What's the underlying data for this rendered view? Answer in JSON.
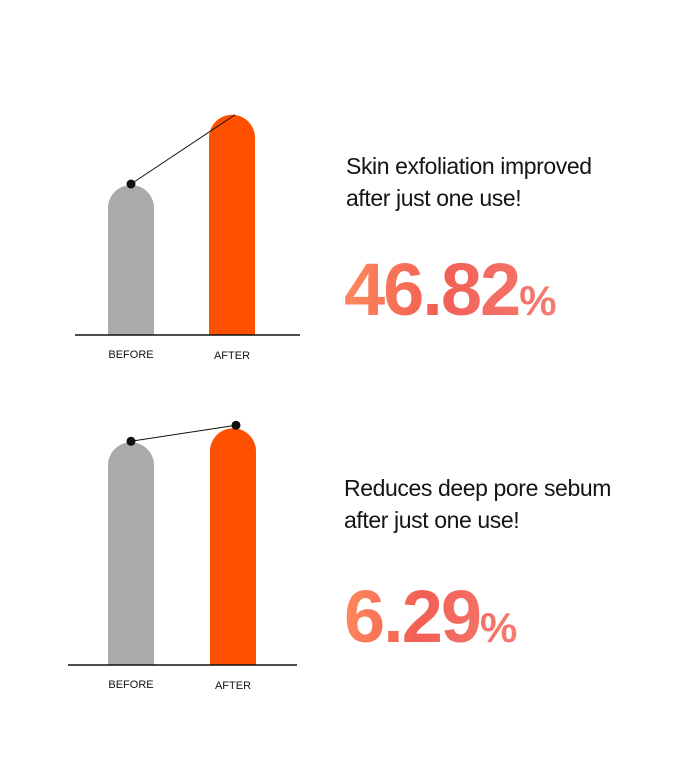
{
  "colors": {
    "before_bar": "#aaaaaa",
    "after_bar": "#ff5000",
    "axis": "#111111",
    "stat_gradient": [
      "#ff8a5c",
      "#f57d72"
    ]
  },
  "panels": [
    {
      "headline_line1": "Skin exfoliation improved",
      "headline_line2": "after just one use!",
      "stat_value": "46.82",
      "stat_unit": "%"
    },
    {
      "headline_line1": "Reduces deep pore sebum",
      "headline_line2": "after just one use!",
      "stat_value": "6.29",
      "stat_unit": "%"
    }
  ],
  "chart_data": [
    {
      "type": "bar",
      "categories": [
        "BEFORE",
        "AFTER"
      ],
      "values": [
        100,
        146.82
      ],
      "title": "",
      "xlabel": "",
      "ylabel": "",
      "ylim": [
        0,
        160
      ],
      "grid": false,
      "connector_line": true
    },
    {
      "type": "bar",
      "categories": [
        "BEFORE",
        "AFTER"
      ],
      "values": [
        100,
        106.29
      ],
      "title": "",
      "xlabel": "",
      "ylabel": "",
      "ylim": [
        0,
        110
      ],
      "grid": false,
      "connector_line": true
    }
  ]
}
